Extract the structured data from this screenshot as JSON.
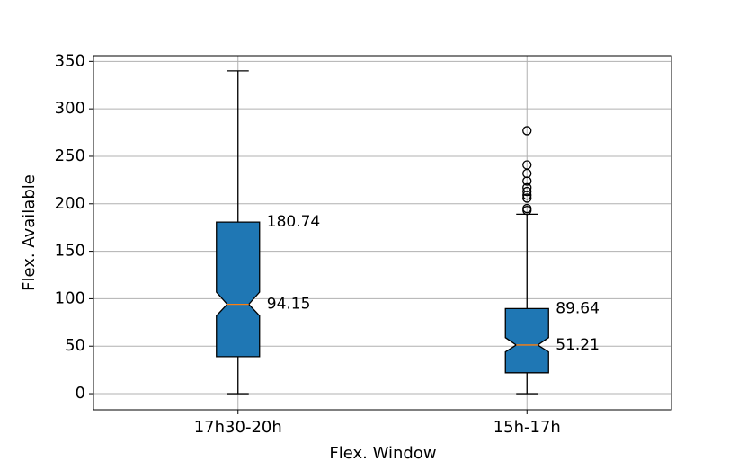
{
  "chart_data": {
    "type": "box",
    "xlabel": "Flex. Window",
    "ylabel": "Flex. Available",
    "categories": [
      "17h30-20h",
      "15h-17h"
    ],
    "boxes": [
      {
        "whislo": 0,
        "q1": 39,
        "notch_lo": 82,
        "med": 94.15,
        "notch_hi": 107,
        "q3": 180.74,
        "whishi": 340,
        "fliers": []
      },
      {
        "whislo": 0,
        "q1": 22,
        "notch_lo": 44,
        "med": 51.21,
        "notch_hi": 59,
        "q3": 89.64,
        "whishi": 189,
        "fliers": [
          277,
          241,
          232,
          224,
          217,
          213,
          209,
          206,
          195,
          193
        ]
      }
    ],
    "color": "#1f77b4",
    "median_color": "#ff7f0e",
    "ylim": [
      -17,
      356
    ],
    "yticks": [
      0,
      50,
      100,
      150,
      200,
      250,
      300,
      350
    ],
    "grid": true
  }
}
